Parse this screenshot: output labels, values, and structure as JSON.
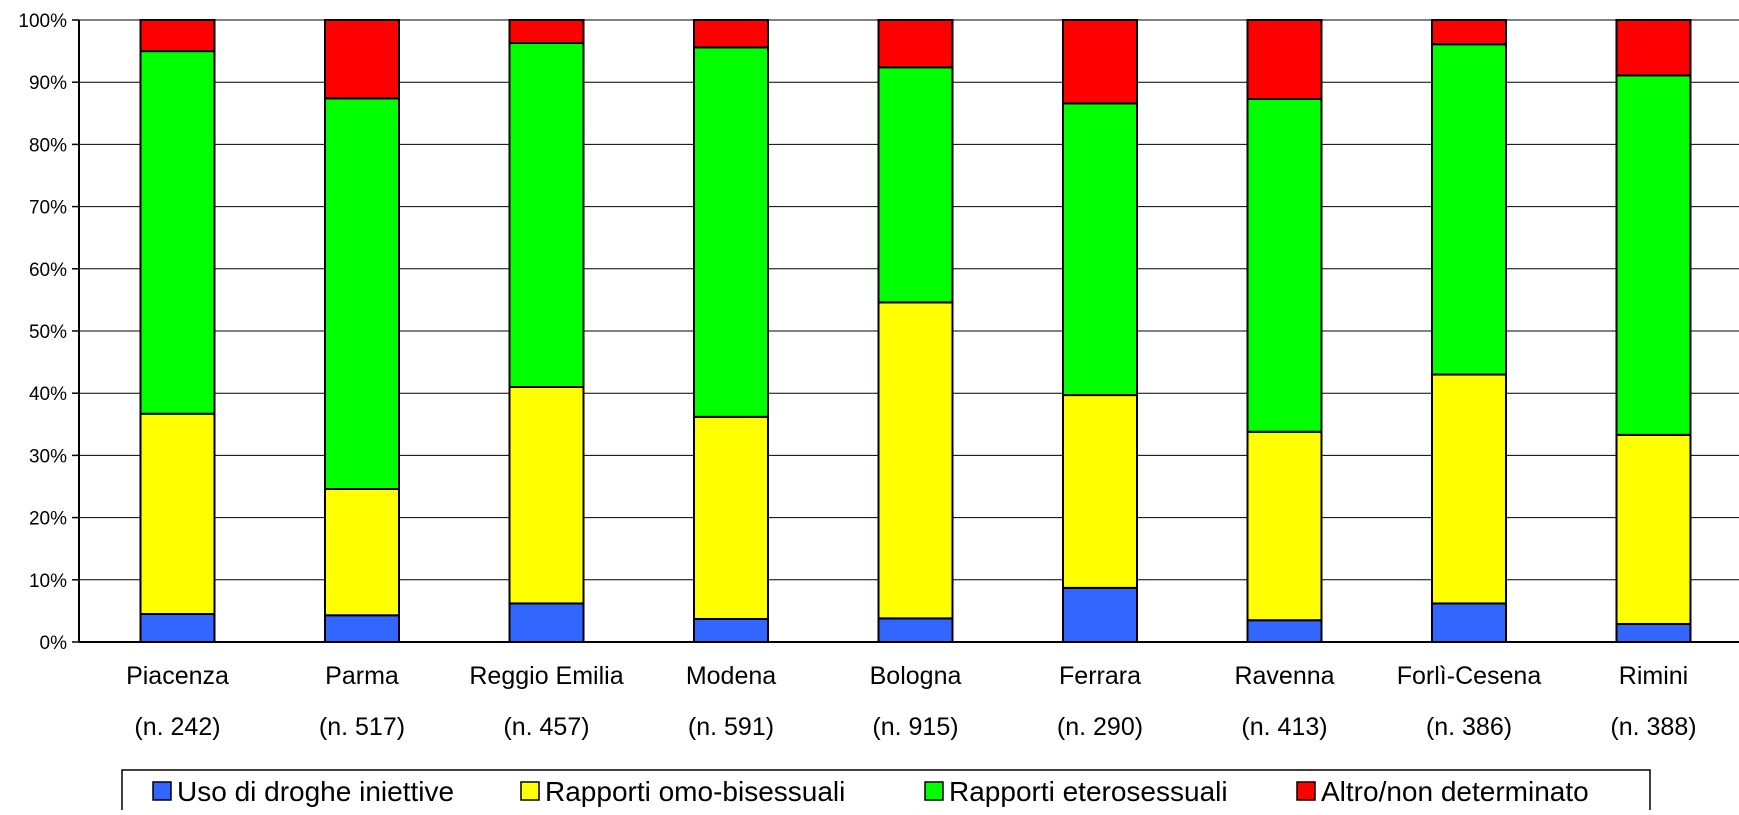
{
  "chart_data": {
    "type": "bar",
    "stacked": true,
    "percent": true,
    "categories": [
      "Piacenza",
      "Parma",
      "Reggio Emilia",
      "Modena",
      "Bologna",
      "Ferrara",
      "Ravenna",
      "Forlì-Cesena",
      "Rimini"
    ],
    "category_counts": [
      "(n. 242)",
      "(n. 517)",
      "(n. 457)",
      "(n. 591)",
      "(n. 915)",
      "(n. 290)",
      "(n. 413)",
      "(n. 386)",
      "(n. 388)"
    ],
    "series": [
      {
        "name": "Uso di droghe iniettive",
        "color": "#3366FF",
        "values": [
          4.5,
          4.3,
          6.2,
          3.7,
          3.8,
          8.7,
          3.5,
          6.2,
          2.9
        ]
      },
      {
        "name": "Rapporti omo-bisessuali",
        "color": "#FFFF00",
        "values": [
          32.2,
          20.3,
          34.8,
          32.5,
          50.8,
          31.0,
          30.3,
          36.8,
          30.4
        ]
      },
      {
        "name": "Rapporti eterosessuali",
        "color": "#00FF00",
        "values": [
          58.3,
          62.8,
          55.3,
          59.4,
          37.8,
          46.9,
          53.5,
          53.1,
          57.8
        ]
      },
      {
        "name": "Altro/non determinato",
        "color": "#FF0000",
        "values": [
          5.0,
          12.6,
          3.7,
          4.4,
          7.6,
          13.4,
          12.7,
          3.9,
          8.9
        ]
      }
    ],
    "y_ticks": [
      "0%",
      "10%",
      "20%",
      "30%",
      "40%",
      "50%",
      "60%",
      "70%",
      "80%",
      "90%",
      "100%"
    ],
    "ylim": [
      0,
      100
    ],
    "grid": true,
    "legend_position": "bottom"
  }
}
